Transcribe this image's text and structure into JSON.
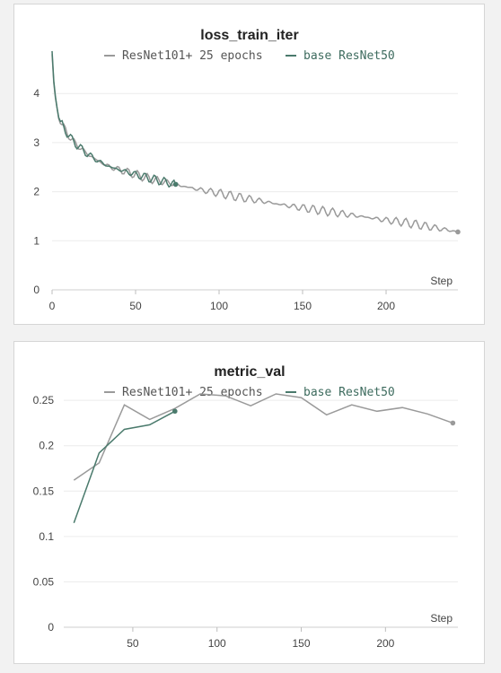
{
  "colors": {
    "resnet101": "#9a9a9a",
    "resnet50": "#4a7a6c"
  },
  "chart_data": [
    {
      "type": "line",
      "title": "loss_train_iter",
      "xlabel": "Step",
      "ylabel": "",
      "xlim": [
        0,
        243
      ],
      "ylim": [
        0,
        4.9
      ],
      "xticks": [
        0,
        50,
        100,
        150,
        200
      ],
      "yticks": [
        0,
        1,
        2,
        3,
        4
      ],
      "legend": "top",
      "grid": true,
      "series": [
        {
          "name": "ResNet101+ 25 epochs",
          "x": [
            0,
            1,
            2,
            3,
            4,
            5,
            7,
            9,
            12,
            15,
            20,
            25,
            30,
            35,
            40,
            50,
            60,
            70,
            80,
            90,
            100,
            110,
            120,
            130,
            140,
            150,
            160,
            170,
            180,
            190,
            200,
            210,
            220,
            230,
            240,
            243
          ],
          "y": [
            4.8,
            4.2,
            3.9,
            3.7,
            3.5,
            3.4,
            3.3,
            3.2,
            3.05,
            2.95,
            2.8,
            2.68,
            2.58,
            2.5,
            2.45,
            2.35,
            2.25,
            2.18,
            2.1,
            2.03,
            1.97,
            1.9,
            1.84,
            1.78,
            1.72,
            1.67,
            1.62,
            1.57,
            1.52,
            1.47,
            1.42,
            1.38,
            1.32,
            1.26,
            1.2,
            1.18
          ]
        },
        {
          "name": "base ResNet50",
          "x": [
            0,
            1,
            2,
            3,
            4,
            5,
            7,
            9,
            12,
            15,
            20,
            25,
            30,
            35,
            40,
            50,
            60,
            70,
            74
          ],
          "y": [
            4.85,
            4.25,
            3.95,
            3.72,
            3.52,
            3.42,
            3.3,
            3.2,
            3.05,
            2.95,
            2.8,
            2.68,
            2.58,
            2.5,
            2.45,
            2.35,
            2.26,
            2.18,
            2.15
          ]
        }
      ]
    },
    {
      "type": "line",
      "title": "metric_val",
      "xlabel": "Step",
      "ylabel": "",
      "xlim": [
        9,
        243
      ],
      "ylim": [
        0,
        0.26
      ],
      "xticks": [
        50,
        100,
        150,
        200
      ],
      "yticks": [
        0,
        0.05,
        0.1,
        0.15,
        0.2,
        0.25
      ],
      "legend": "top",
      "grid": true,
      "series": [
        {
          "name": "ResNet101+ 25 epochs",
          "x": [
            15,
            30,
            45,
            60,
            75,
            90,
            105,
            120,
            135,
            150,
            165,
            180,
            195,
            210,
            225,
            240
          ],
          "y": [
            0.162,
            0.181,
            0.245,
            0.229,
            0.241,
            0.257,
            0.255,
            0.244,
            0.257,
            0.253,
            0.234,
            0.245,
            0.238,
            0.242,
            0.235,
            0.225
          ]
        },
        {
          "name": "base ResNet50",
          "x": [
            15,
            30,
            45,
            60,
            75
          ],
          "y": [
            0.115,
            0.192,
            0.218,
            0.223,
            0.238
          ]
        }
      ]
    }
  ]
}
